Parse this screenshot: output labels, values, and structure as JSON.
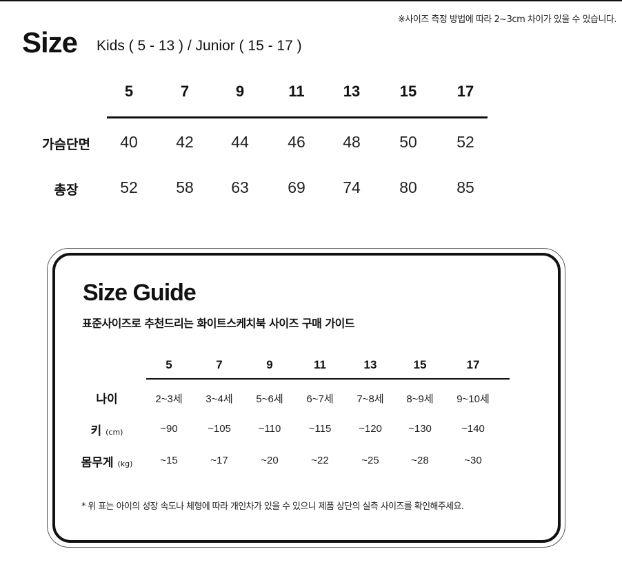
{
  "notice": "※사이즈 측정 방법에 따라 2~3cm 차이가 있을 수 있습니다.",
  "size_chart": {
    "title": "Size",
    "subtitle": "Kids ( 5 - 13 ) / Junior ( 15 - 17 )",
    "sizes": [
      "5",
      "7",
      "9",
      "11",
      "13",
      "15",
      "17"
    ],
    "rows": [
      {
        "label": "가슴단면",
        "values": [
          "40",
          "42",
          "44",
          "46",
          "48",
          "50",
          "52"
        ]
      },
      {
        "label": "총장",
        "values": [
          "52",
          "58",
          "63",
          "69",
          "74",
          "80",
          "85"
        ]
      }
    ]
  },
  "size_guide": {
    "title": "Size Guide",
    "subtitle": "표준사이즈로 추천드리는 화이트스케치북 사이즈 구매 가이드",
    "sizes": [
      "5",
      "7",
      "9",
      "11",
      "13",
      "15",
      "17"
    ],
    "rows": [
      {
        "label": "나이",
        "unit": "",
        "values": [
          "2~3세",
          "3~4세",
          "5~6세",
          "6~7세",
          "7~8세",
          "8~9세",
          "9~10세"
        ]
      },
      {
        "label": "키",
        "unit": "(cm)",
        "values": [
          "~90",
          "~105",
          "~110",
          "~115",
          "~120",
          "~130",
          "~140"
        ]
      },
      {
        "label": "몸무게",
        "unit": "(kg)",
        "values": [
          "~15",
          "~17",
          "~20",
          "~22",
          "~25",
          "~28",
          "~30"
        ]
      }
    ],
    "note": "* 위 표는 아이의 성장 속도나 체형에 따라 개인차가 있을 수 있으니 제품 상단의 실측 사이즈를 확인해주세요."
  }
}
